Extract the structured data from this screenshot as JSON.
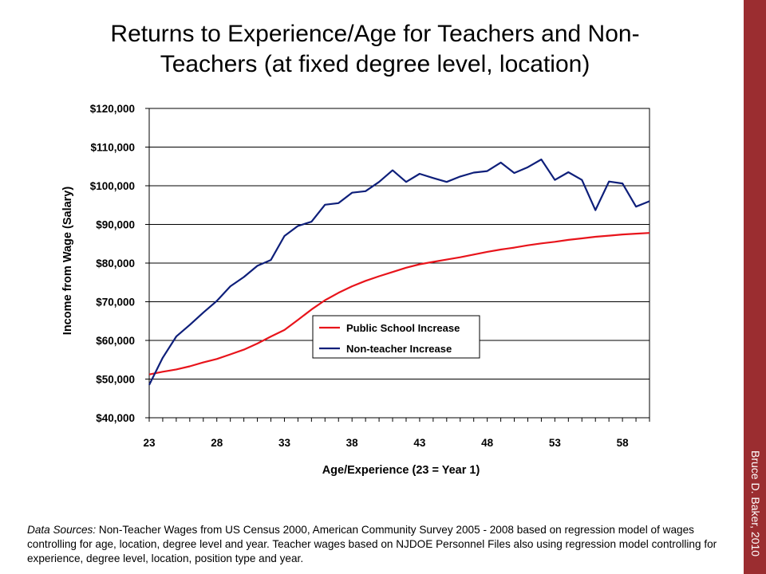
{
  "slide": {
    "title_line1": "Returns to Experience/Age for Teachers and Non-",
    "title_line2": "Teachers (at fixed degree level, location)",
    "author": "Bruce D. Baker, 2010",
    "footnote_label": "Data Sources:",
    "footnote_text": " Non-Teacher Wages from US Census 2000, American Community Survey 2005 - 2008 based on regression model of wages controlling for age, location, degree level and year. Teacher wages based on NJDOE Personnel Files also using regression model controlling for experience, degree level, location, position type and year.",
    "accent_color": "#9b2d30"
  },
  "chart_data": {
    "type": "line",
    "xlabel": "Age/Experience (23 = Year 1)",
    "ylabel": "Income from Wage (Salary)",
    "xlim": [
      23,
      60
    ],
    "ylim": [
      40000,
      120000
    ],
    "x_ticks": [
      23,
      28,
      33,
      38,
      43,
      48,
      53,
      58
    ],
    "y_ticks": [
      40000,
      50000,
      60000,
      70000,
      80000,
      90000,
      100000,
      110000,
      120000
    ],
    "y_tick_labels": [
      "$40,000",
      "$50,000",
      "$60,000",
      "$70,000",
      "$80,000",
      "$90,000",
      "$100,000",
      "$110,000",
      "$120,000"
    ],
    "grid": "horizontal",
    "legend_position": "center-right",
    "x": [
      23,
      24,
      25,
      26,
      27,
      28,
      29,
      30,
      31,
      32,
      33,
      34,
      35,
      36,
      37,
      38,
      39,
      40,
      41,
      42,
      43,
      44,
      45,
      46,
      47,
      48,
      49,
      50,
      51,
      52,
      53,
      54,
      55,
      56,
      57,
      58,
      59,
      60
    ],
    "series": [
      {
        "name": "Public School Increase",
        "color": "#e8141b",
        "values": [
          51200,
          51900,
          52500,
          53300,
          54300,
          55200,
          56400,
          57600,
          59200,
          61000,
          62700,
          65300,
          68000,
          70400,
          72300,
          74000,
          75400,
          76600,
          77700,
          78800,
          79700,
          80300,
          80900,
          81500,
          82200,
          82900,
          83500,
          84000,
          84600,
          85100,
          85500,
          86000,
          86400,
          86800,
          87100,
          87400,
          87600,
          87800
        ]
      },
      {
        "name": "Non-teacher Increase",
        "color": "#0e1f7a",
        "values": [
          48500,
          55500,
          61000,
          64000,
          67200,
          70200,
          74000,
          76400,
          79300,
          80800,
          87000,
          89600,
          90700,
          95100,
          95500,
          98200,
          98600,
          101000,
          104000,
          101000,
          103100,
          102000,
          101000,
          102400,
          103400,
          103800,
          106000,
          103300,
          104800,
          106800,
          101500,
          103500,
          101500,
          93700,
          101100,
          100600,
          94600,
          96000
        ]
      }
    ]
  }
}
